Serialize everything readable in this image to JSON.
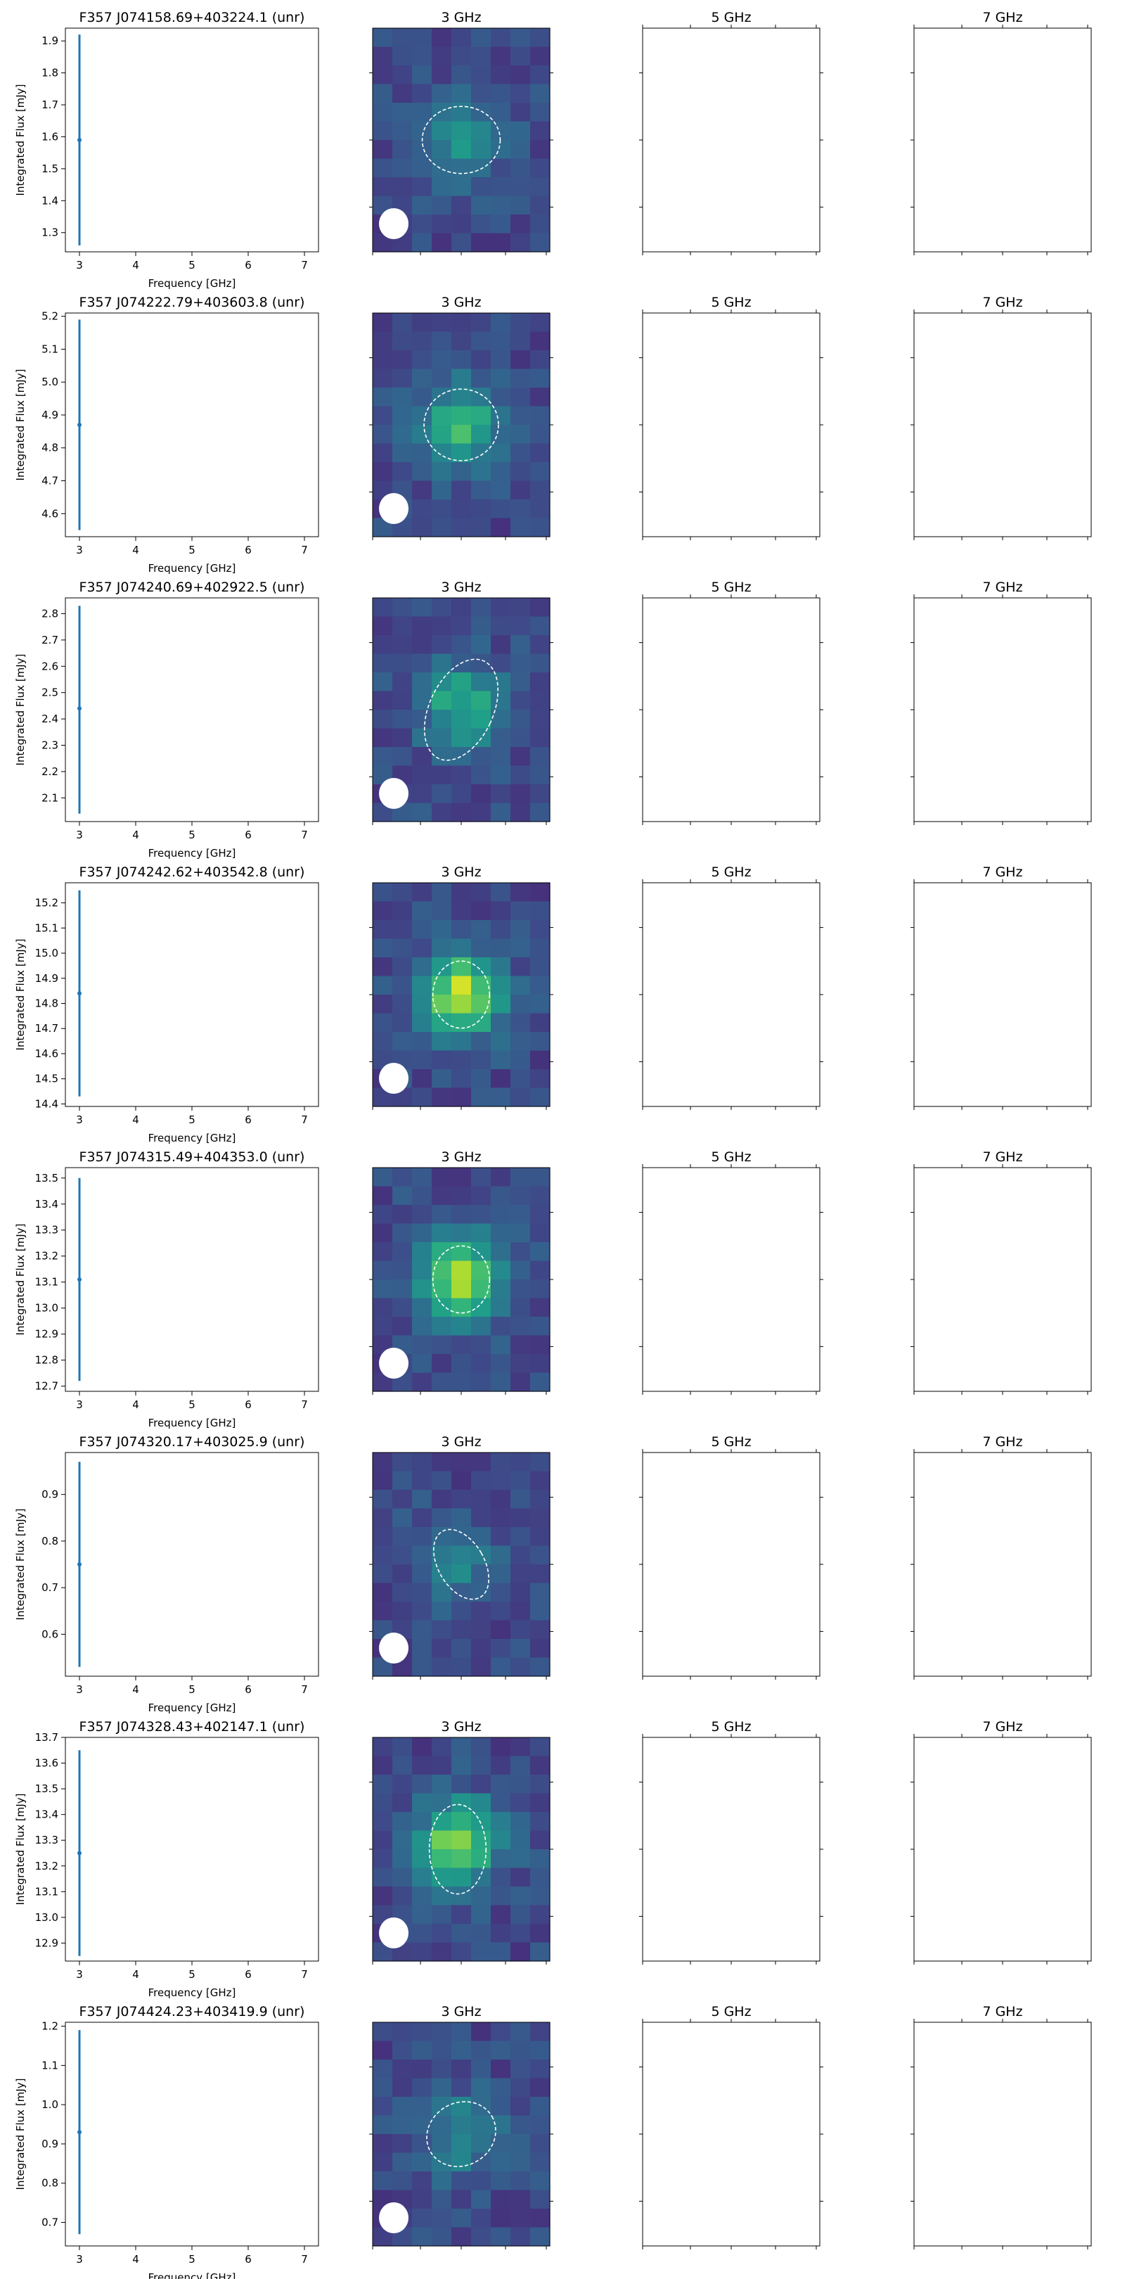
{
  "chart_data": [
    {
      "type": "scatter",
      "title": "F357 J074158.69+403224.1 (unr)",
      "xlabel": "Frequency [GHz]",
      "ylabel": "Integrated Flux [mJy]",
      "xlim": [
        2.75,
        7.25
      ],
      "ylim": [
        1.24,
        1.94
      ],
      "xticks": [
        "3",
        "4",
        "5",
        "6",
        "7"
      ],
      "yticks": [
        1.3,
        1.4,
        1.5,
        1.6,
        1.7,
        1.8,
        1.9
      ],
      "points": [
        {
          "x": 3,
          "y": 1.59,
          "yerr_low": 1.26,
          "yerr_high": 1.92
        }
      ],
      "image_titles": [
        "3 GHz",
        "5 GHz",
        "7 GHz"
      ],
      "image_3ghz": {
        "peak": 0.45,
        "blob_x": 0.5,
        "blob_y": 0.5,
        "ellipse": {
          "cx": 0.5,
          "cy": 0.5,
          "rx": 0.22,
          "ry": 0.15,
          "angle": 0
        }
      }
    },
    {
      "type": "scatter",
      "title": "F357 J074222.79+403603.8 (unr)",
      "xlabel": "Frequency [GHz]",
      "ylabel": "Integrated Flux [mJy]",
      "xlim": [
        2.75,
        7.25
      ],
      "ylim": [
        4.53,
        5.21
      ],
      "xticks": [
        "3",
        "4",
        "5",
        "6",
        "7"
      ],
      "yticks": [
        4.6,
        4.7,
        4.8,
        4.9,
        5.0,
        5.1,
        5.2
      ],
      "points": [
        {
          "x": 3,
          "y": 4.87,
          "yerr_low": 4.55,
          "yerr_high": 5.19
        }
      ],
      "image_titles": [
        "3 GHz",
        "5 GHz",
        "7 GHz"
      ],
      "image_3ghz": {
        "peak": 0.65,
        "blob_x": 0.5,
        "blob_y": 0.5,
        "ellipse": {
          "cx": 0.5,
          "cy": 0.5,
          "rx": 0.21,
          "ry": 0.16,
          "angle": 0
        }
      }
    },
    {
      "type": "scatter",
      "title": "F357 J074240.69+402922.5 (unr)",
      "xlabel": "Frequency [GHz]",
      "ylabel": "Integrated Flux [mJy]",
      "xlim": [
        2.75,
        7.25
      ],
      "ylim": [
        2.01,
        2.86
      ],
      "xticks": [
        "3",
        "4",
        "5",
        "6",
        "7"
      ],
      "yticks": [
        2.1,
        2.2,
        2.3,
        2.4,
        2.5,
        2.6,
        2.7,
        2.8
      ],
      "points": [
        {
          "x": 3,
          "y": 2.44,
          "yerr_low": 2.04,
          "yerr_high": 2.83
        }
      ],
      "image_titles": [
        "3 GHz",
        "5 GHz",
        "7 GHz"
      ],
      "image_3ghz": {
        "peak": 0.55,
        "blob_x": 0.5,
        "blob_y": 0.48,
        "ellipse": {
          "cx": 0.5,
          "cy": 0.5,
          "rx": 0.18,
          "ry": 0.24,
          "angle": 25
        }
      }
    },
    {
      "type": "scatter",
      "title": "F357 J074242.62+403542.8 (unr)",
      "xlabel": "Frequency [GHz]",
      "ylabel": "Integrated Flux [mJy]",
      "xlim": [
        2.75,
        7.25
      ],
      "ylim": [
        14.39,
        15.28
      ],
      "xticks": [
        "3",
        "4",
        "5",
        "6",
        "7"
      ],
      "yticks": [
        14.4,
        14.5,
        14.6,
        14.7,
        14.8,
        14.9,
        15.0,
        15.1,
        15.2
      ],
      "points": [
        {
          "x": 3,
          "y": 14.84,
          "yerr_low": 14.43,
          "yerr_high": 15.25
        }
      ],
      "image_titles": [
        "3 GHz",
        "5 GHz",
        "7 GHz"
      ],
      "image_3ghz": {
        "peak": 0.95,
        "blob_x": 0.5,
        "blob_y": 0.5,
        "ellipse": {
          "cx": 0.5,
          "cy": 0.5,
          "rx": 0.16,
          "ry": 0.15,
          "angle": 0
        }
      }
    },
    {
      "type": "scatter",
      "title": "F357 J074315.49+404353.0 (unr)",
      "xlabel": "Frequency [GHz]",
      "ylabel": "Integrated Flux [mJy]",
      "xlim": [
        2.75,
        7.25
      ],
      "ylim": [
        12.68,
        13.54
      ],
      "xticks": [
        "3",
        "4",
        "5",
        "6",
        "7"
      ],
      "yticks": [
        12.7,
        12.8,
        12.9,
        13.0,
        13.1,
        13.2,
        13.3,
        13.4,
        13.5
      ],
      "points": [
        {
          "x": 3,
          "y": 13.11,
          "yerr_low": 12.72,
          "yerr_high": 13.5
        }
      ],
      "image_titles": [
        "3 GHz",
        "5 GHz",
        "7 GHz"
      ],
      "image_3ghz": {
        "peak": 0.9,
        "blob_x": 0.5,
        "blob_y": 0.5,
        "ellipse": {
          "cx": 0.5,
          "cy": 0.5,
          "rx": 0.16,
          "ry": 0.15,
          "angle": 0
        }
      }
    },
    {
      "type": "scatter",
      "title": "F357 J074320.17+403025.9 (unr)",
      "xlabel": "Frequency [GHz]",
      "ylabel": "Integrated Flux [mJy]",
      "xlim": [
        2.75,
        7.25
      ],
      "ylim": [
        0.51,
        0.99
      ],
      "xticks": [
        "3",
        "4",
        "5",
        "6",
        "7"
      ],
      "yticks": [
        0.6,
        0.7,
        0.8,
        0.9
      ],
      "points": [
        {
          "x": 3,
          "y": 0.75,
          "yerr_low": 0.53,
          "yerr_high": 0.97
        }
      ],
      "image_titles": [
        "3 GHz",
        "5 GHz",
        "7 GHz"
      ],
      "image_3ghz": {
        "peak": 0.3,
        "blob_x": 0.5,
        "blob_y": 0.5,
        "ellipse": {
          "cx": 0.5,
          "cy": 0.5,
          "rx": 0.13,
          "ry": 0.17,
          "angle": -30
        }
      }
    },
    {
      "type": "scatter",
      "title": "F357 J074328.43+402147.1 (unr)",
      "xlabel": "Frequency [GHz]",
      "ylabel": "Integrated Flux [mJy]",
      "xlim": [
        2.75,
        7.25
      ],
      "ylim": [
        12.83,
        13.7
      ],
      "xticks": [
        "3",
        "4",
        "5",
        "6",
        "7"
      ],
      "yticks": [
        12.9,
        13.0,
        13.1,
        13.2,
        13.3,
        13.4,
        13.5,
        13.6,
        13.7
      ],
      "points": [
        {
          "x": 3,
          "y": 13.25,
          "yerr_low": 12.85,
          "yerr_high": 13.65
        }
      ],
      "image_titles": [
        "3 GHz",
        "5 GHz",
        "7 GHz"
      ],
      "image_3ghz": {
        "peak": 0.85,
        "blob_x": 0.48,
        "blob_y": 0.47,
        "ellipse": {
          "cx": 0.48,
          "cy": 0.5,
          "rx": 0.16,
          "ry": 0.2,
          "angle": 0
        }
      }
    },
    {
      "type": "scatter",
      "title": "F357 J074424.23+403419.9 (unr)",
      "xlabel": "Frequency [GHz]",
      "ylabel": "Integrated Flux [mJy]",
      "xlim": [
        2.75,
        7.25
      ],
      "ylim": [
        0.64,
        1.21
      ],
      "xticks": [
        "3",
        "4",
        "5",
        "6",
        "7"
      ],
      "yticks": [
        0.7,
        0.8,
        0.9,
        1.0,
        1.1,
        1.2
      ],
      "points": [
        {
          "x": 3,
          "y": 0.93,
          "yerr_low": 0.67,
          "yerr_high": 1.19
        }
      ],
      "image_titles": [
        "3 GHz",
        "5 GHz",
        "7 GHz"
      ],
      "image_3ghz": {
        "peak": 0.35,
        "blob_x": 0.5,
        "blob_y": 0.5,
        "ellipse": {
          "cx": 0.5,
          "cy": 0.5,
          "rx": 0.2,
          "ry": 0.14,
          "angle": -30
        }
      }
    }
  ],
  "colors": {
    "marker": "#1f77b4",
    "viridis_low": "#440154",
    "viridis_mid": "#21918c",
    "viridis_high": "#fde725"
  }
}
